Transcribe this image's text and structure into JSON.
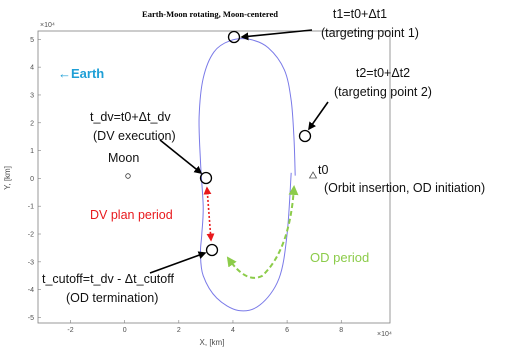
{
  "chart_data": {
    "type": "line",
    "title": "Earth-Moon rotating, Moon-centered",
    "xlabel": "X, [km]",
    "ylabel": "Y, [km]",
    "x_multiplier_label": "×10⁴",
    "y_multiplier_label": "×10⁴",
    "xlim": [
      -3.2,
      9.8
    ],
    "ylim": [
      -5.2,
      5.3
    ],
    "xticks": [
      "-2",
      "0",
      "2",
      "4",
      "6",
      "8"
    ],
    "yticks": [
      "5",
      "4",
      "3",
      "2",
      "1",
      "0",
      "-1",
      "-2",
      "-3",
      "-4",
      "-5"
    ],
    "grid": false,
    "trajectory_color": "#7a7ae8",
    "trajectory_points": [
      [
        6.3,
        0.1
      ],
      [
        6.25,
        1.5
      ],
      [
        6.15,
        2.8
      ],
      [
        5.9,
        3.9
      ],
      [
        5.3,
        4.7
      ],
      [
        4.6,
        5.0
      ],
      [
        3.9,
        4.95
      ],
      [
        3.3,
        4.55
      ],
      [
        2.9,
        3.6
      ],
      [
        2.75,
        2.2
      ],
      [
        2.8,
        0.6
      ],
      [
        2.9,
        -1.0
      ],
      [
        2.85,
        -2.0
      ],
      [
        2.8,
        -2.7
      ],
      [
        2.9,
        -3.5
      ],
      [
        3.4,
        -4.3
      ],
      [
        4.2,
        -4.75
      ],
      [
        5.0,
        -4.55
      ],
      [
        5.7,
        -3.6
      ],
      [
        6.0,
        -2.0
      ],
      [
        6.15,
        0.2
      ]
    ],
    "points": [
      {
        "name": "Moon",
        "x": 0,
        "y": 0
      },
      {
        "name": "t0",
        "x": 6.3,
        "y": 0.1
      },
      {
        "name": "t1",
        "x": 4.0,
        "y": 5.0
      },
      {
        "name": "t2",
        "x": 6.0,
        "y": 1.5
      },
      {
        "name": "t_dv",
        "x": 2.75,
        "y": 0.0
      },
      {
        "name": "t_cutoff",
        "x": 2.65,
        "y": -2.6
      }
    ]
  },
  "annotations": {
    "earth_label": "←Earth",
    "moon_label": "Moon",
    "t1_line1": "t1=t0+Δt1",
    "t1_line2": "(targeting point 1)",
    "t2_line1": "t2=t0+Δt2",
    "t2_line2": "(targeting point 2)",
    "tdv_line1": "t_dv=t0+Δt_dv",
    "tdv_line2": "(DV execution)",
    "t0_line1": "t0",
    "t0_line2": "(Orbit insertion, OD initiation)",
    "dv_plan": "DV plan period",
    "od_period": "OD period",
    "tcut_line1": "t_cutoff=t_dv - Δt_cutoff",
    "tcut_line2": "(OD termination)"
  },
  "colors": {
    "earth": "#1e9fd6",
    "dv_plan": "#e8191d",
    "od_period": "#8ccc4a",
    "marker": "#000000",
    "axis": "#7f7f7f"
  }
}
